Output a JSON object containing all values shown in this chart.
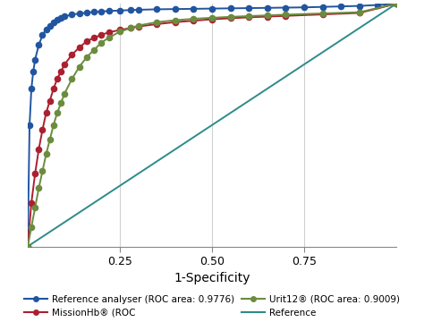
{
  "xlabel": "1-Specificity",
  "xlim": [
    0,
    1
  ],
  "ylim": [
    0,
    1
  ],
  "xticks": [
    0.25,
    0.5,
    0.75
  ],
  "yticks": [],
  "grid_color": "#d0d0d0",
  "background_color": "#ffffff",
  "reference_color": "#2e8b8b",
  "reference_analyser_color": "#2155a0",
  "missionhb_color": "#aa2030",
  "urit12_color": "#6b8c3e",
  "marker_size": 5.5,
  "line_width": 1.4,
  "ref_analyser_label": "Reference analyser (ROC area: 0.9776)",
  "missionhb_label": "MissionHb® (ROC",
  "urit12_label": "Urit12® (ROC area: 0.9009)",
  "reference_label": "Reference",
  "ref_analyser_fpr": [
    0,
    0.005,
    0.01,
    0.015,
    0.02,
    0.03,
    0.04,
    0.05,
    0.06,
    0.07,
    0.08,
    0.09,
    0.1,
    0.12,
    0.14,
    0.16,
    0.18,
    0.2,
    0.22,
    0.25,
    0.28,
    0.3,
    0.35,
    0.4,
    0.45,
    0.5,
    0.55,
    0.6,
    0.65,
    0.7,
    0.75,
    0.8,
    0.85,
    0.9,
    0.95,
    1.0
  ],
  "ref_analyser_tpr": [
    0,
    0.5,
    0.65,
    0.72,
    0.77,
    0.83,
    0.87,
    0.895,
    0.91,
    0.925,
    0.935,
    0.942,
    0.948,
    0.955,
    0.96,
    0.963,
    0.966,
    0.968,
    0.97,
    0.972,
    0.974,
    0.975,
    0.977,
    0.978,
    0.979,
    0.98,
    0.981,
    0.982,
    0.983,
    0.984,
    0.985,
    0.987,
    0.989,
    0.991,
    0.995,
    1.0
  ],
  "missionhb_fpr": [
    0,
    0.01,
    0.02,
    0.03,
    0.04,
    0.05,
    0.06,
    0.07,
    0.08,
    0.09,
    0.1,
    0.12,
    0.14,
    0.16,
    0.18,
    0.2,
    0.22,
    0.25,
    0.28,
    0.3,
    0.35,
    0.4,
    0.45,
    0.5,
    0.55,
    0.6,
    0.65,
    0.7,
    0.8,
    0.9,
    1.0
  ],
  "missionhb_tpr": [
    0,
    0.18,
    0.3,
    0.4,
    0.48,
    0.55,
    0.6,
    0.65,
    0.69,
    0.72,
    0.75,
    0.79,
    0.82,
    0.845,
    0.86,
    0.872,
    0.882,
    0.892,
    0.9,
    0.906,
    0.916,
    0.924,
    0.93,
    0.936,
    0.94,
    0.944,
    0.947,
    0.95,
    0.956,
    0.962,
    1.0
  ],
  "urit12_fpr": [
    0,
    0.01,
    0.02,
    0.03,
    0.04,
    0.05,
    0.06,
    0.07,
    0.08,
    0.09,
    0.1,
    0.12,
    0.14,
    0.16,
    0.18,
    0.2,
    0.22,
    0.25,
    0.28,
    0.3,
    0.35,
    0.4,
    0.45,
    0.5,
    0.55,
    0.6,
    0.65,
    0.7,
    0.8,
    0.9,
    1.0
  ],
  "urit12_tpr": [
    0,
    0.08,
    0.16,
    0.24,
    0.31,
    0.38,
    0.44,
    0.5,
    0.55,
    0.59,
    0.63,
    0.69,
    0.74,
    0.78,
    0.81,
    0.84,
    0.86,
    0.885,
    0.9,
    0.91,
    0.924,
    0.932,
    0.938,
    0.942,
    0.946,
    0.949,
    0.952,
    0.955,
    0.96,
    0.965,
    1.0
  ]
}
